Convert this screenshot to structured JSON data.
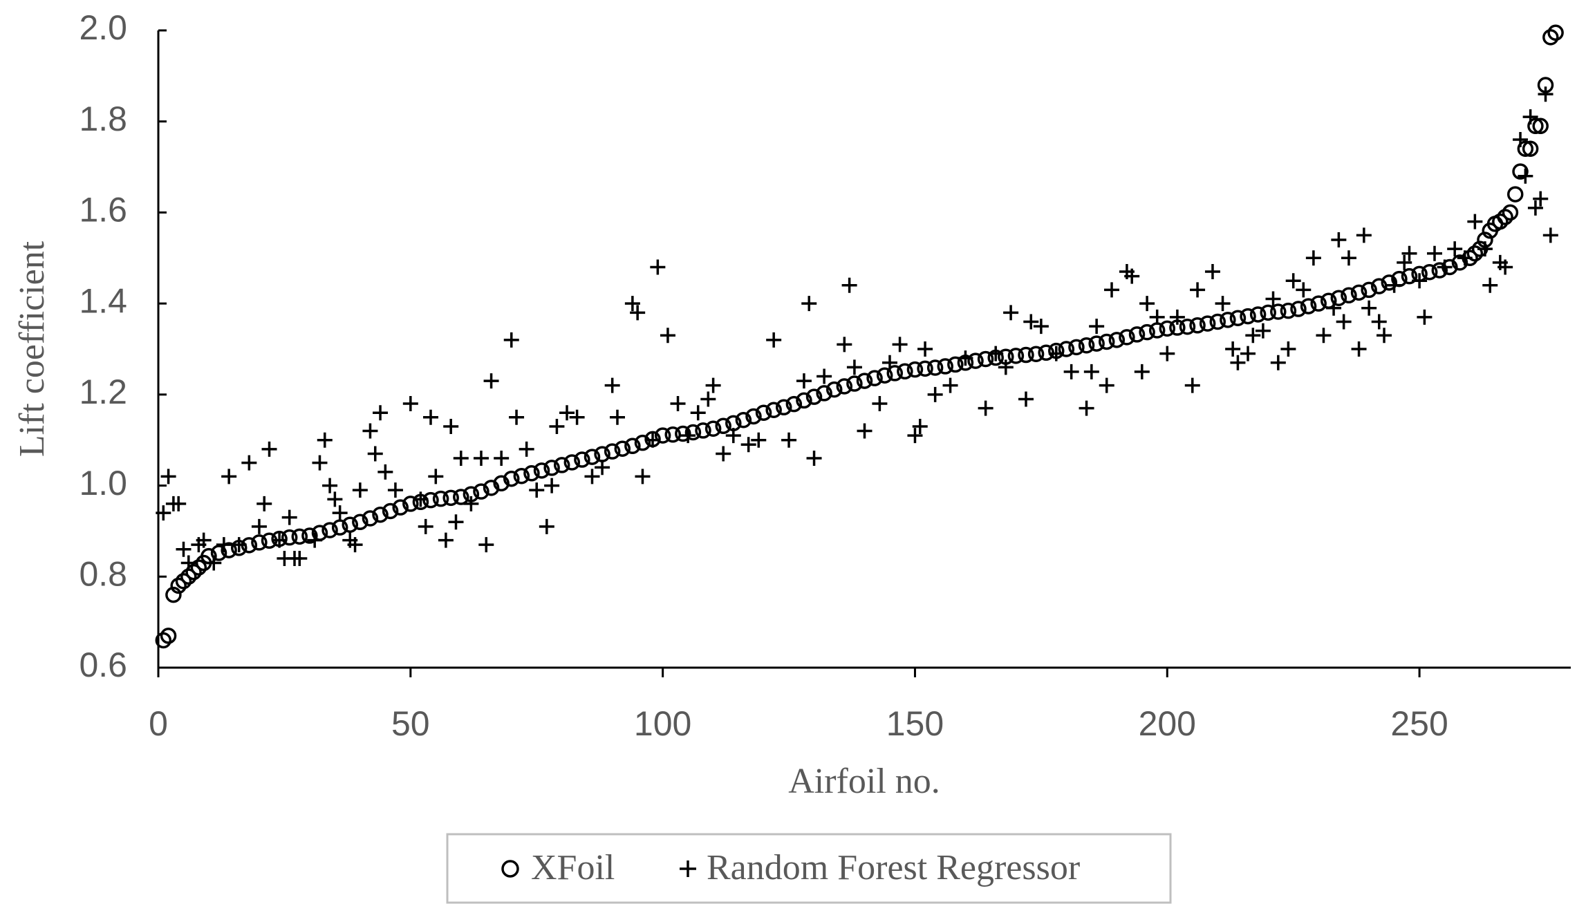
{
  "chart_data": {
    "type": "scatter",
    "x_label": "Airfoil no.",
    "y_label": "Lift coefficient",
    "xlim": [
      0,
      280
    ],
    "ylim": [
      0.6,
      2.0
    ],
    "xticks": [
      0,
      50,
      100,
      150,
      200,
      250
    ],
    "yticks": [
      {
        "value": 0.6,
        "label": "0.6"
      },
      {
        "value": 0.8,
        "label": "0.8"
      },
      {
        "value": 1.0,
        "label": "1.0"
      },
      {
        "value": 1.2,
        "label": "1.2"
      },
      {
        "value": 1.4,
        "label": "1.4"
      },
      {
        "value": 1.6,
        "label": "1.6"
      },
      {
        "value": 1.8,
        "label": "1.8"
      },
      {
        "value": 2.0,
        "label": "2.0"
      }
    ],
    "legend": "bottom",
    "series": [
      {
        "name": "XFoil",
        "color": "#000000",
        "marker": "circle",
        "x": [
          1,
          2,
          3,
          4,
          5,
          6,
          7,
          8,
          9,
          10,
          12,
          14,
          16,
          18,
          20,
          22,
          24,
          26,
          28,
          30,
          32,
          34,
          36,
          38,
          40,
          42,
          44,
          46,
          48,
          50,
          52,
          54,
          56,
          58,
          60,
          62,
          64,
          66,
          68,
          70,
          72,
          74,
          76,
          78,
          80,
          82,
          84,
          86,
          88,
          90,
          92,
          94,
          96,
          98,
          100,
          102,
          104,
          106,
          108,
          110,
          112,
          114,
          116,
          118,
          120,
          122,
          124,
          126,
          128,
          130,
          132,
          134,
          136,
          138,
          140,
          142,
          144,
          146,
          148,
          150,
          152,
          154,
          156,
          158,
          160,
          162,
          164,
          166,
          168,
          170,
          172,
          174,
          176,
          178,
          180,
          182,
          184,
          186,
          188,
          190,
          192,
          194,
          196,
          198,
          200,
          202,
          204,
          206,
          208,
          210,
          212,
          214,
          216,
          218,
          220,
          222,
          224,
          226,
          228,
          230,
          232,
          234,
          236,
          238,
          240,
          242,
          244,
          246,
          248,
          250,
          252,
          254,
          256,
          258,
          260,
          261,
          262,
          263,
          264,
          265,
          266,
          267,
          268,
          269,
          270,
          271,
          272,
          273,
          274,
          275,
          276,
          277
        ],
        "values": [
          0.66,
          0.67,
          0.76,
          0.78,
          0.79,
          0.8,
          0.81,
          0.82,
          0.83,
          0.845,
          0.852,
          0.858,
          0.863,
          0.869,
          0.875,
          0.879,
          0.883,
          0.886,
          0.888,
          0.89,
          0.896,
          0.902,
          0.908,
          0.914,
          0.92,
          0.928,
          0.936,
          0.944,
          0.952,
          0.96,
          0.964,
          0.968,
          0.971,
          0.973,
          0.975,
          0.981,
          0.987,
          0.995,
          1.005,
          1.015,
          1.021,
          1.027,
          1.033,
          1.039,
          1.045,
          1.051,
          1.057,
          1.063,
          1.069,
          1.075,
          1.081,
          1.087,
          1.094,
          1.102,
          1.11,
          1.112,
          1.114,
          1.117,
          1.121,
          1.125,
          1.131,
          1.137,
          1.144,
          1.152,
          1.16,
          1.166,
          1.172,
          1.179,
          1.187,
          1.195,
          1.203,
          1.211,
          1.218,
          1.224,
          1.23,
          1.236,
          1.242,
          1.247,
          1.251,
          1.255,
          1.257,
          1.259,
          1.262,
          1.266,
          1.27,
          1.274,
          1.278,
          1.281,
          1.283,
          1.285,
          1.287,
          1.289,
          1.292,
          1.296,
          1.3,
          1.304,
          1.308,
          1.312,
          1.316,
          1.32,
          1.326,
          1.332,
          1.337,
          1.341,
          1.345,
          1.347,
          1.349,
          1.352,
          1.356,
          1.36,
          1.364,
          1.368,
          1.372,
          1.376,
          1.38,
          1.382,
          1.384,
          1.388,
          1.394,
          1.4,
          1.406,
          1.412,
          1.418,
          1.424,
          1.43,
          1.438,
          1.446,
          1.454,
          1.46,
          1.465,
          1.469,
          1.473,
          1.48,
          1.49,
          1.5,
          1.51,
          1.52,
          1.54,
          1.56,
          1.575,
          1.58,
          1.59,
          1.6,
          1.64,
          1.69,
          1.74,
          1.74,
          1.79,
          1.79,
          1.88,
          1.985,
          1.995
        ]
      },
      {
        "name": "Random Forest Regressor",
        "color": "#000000",
        "marker": "plus",
        "x": [
          1,
          2,
          3,
          4,
          5,
          6,
          8,
          9,
          11,
          13,
          14,
          16,
          18,
          20,
          21,
          22,
          24,
          25,
          26,
          27,
          28,
          31,
          32,
          33,
          34,
          35,
          36,
          38,
          39,
          40,
          42,
          43,
          44,
          45,
          47,
          50,
          52,
          53,
          54,
          55,
          57,
          58,
          59,
          60,
          62,
          64,
          65,
          66,
          68,
          70,
          71,
          73,
          75,
          77,
          78,
          79,
          81,
          83,
          86,
          88,
          90,
          91,
          94,
          95,
          96,
          98,
          99,
          101,
          103,
          105,
          107,
          109,
          110,
          112,
          114,
          117,
          119,
          122,
          125,
          128,
          129,
          130,
          132,
          136,
          137,
          138,
          140,
          143,
          145,
          147,
          150,
          151,
          152,
          154,
          157,
          160,
          164,
          166,
          168,
          169,
          172,
          173,
          175,
          178,
          181,
          184,
          185,
          186,
          188,
          189,
          192,
          193,
          195,
          196,
          198,
          200,
          202,
          205,
          206,
          209,
          211,
          213,
          214,
          216,
          217,
          219,
          221,
          222,
          224,
          225,
          227,
          229,
          231,
          233,
          234,
          235,
          236,
          238,
          239,
          240,
          242,
          243,
          245,
          247,
          248,
          250,
          251,
          253,
          255,
          257,
          259,
          261,
          263,
          264,
          266,
          267,
          270,
          271,
          272,
          273,
          274,
          275,
          276
        ],
        "values": [
          0.94,
          1.02,
          0.96,
          0.96,
          0.86,
          0.83,
          0.87,
          0.88,
          0.83,
          0.87,
          1.02,
          0.87,
          1.05,
          0.91,
          0.96,
          1.08,
          0.88,
          0.84,
          0.93,
          0.84,
          0.84,
          0.88,
          1.05,
          1.1,
          1.0,
          0.97,
          0.94,
          0.88,
          0.87,
          0.99,
          1.12,
          1.07,
          1.16,
          1.03,
          0.99,
          1.18,
          0.97,
          0.91,
          1.15,
          1.02,
          0.88,
          1.13,
          0.92,
          1.06,
          0.96,
          1.06,
          0.87,
          1.23,
          1.06,
          1.32,
          1.15,
          1.08,
          0.99,
          0.91,
          1.0,
          1.13,
          1.16,
          1.15,
          1.02,
          1.04,
          1.22,
          1.15,
          1.4,
          1.38,
          1.02,
          1.1,
          1.48,
          1.33,
          1.18,
          1.11,
          1.16,
          1.19,
          1.22,
          1.07,
          1.11,
          1.09,
          1.1,
          1.32,
          1.1,
          1.23,
          1.4,
          1.06,
          1.24,
          1.31,
          1.44,
          1.26,
          1.12,
          1.18,
          1.27,
          1.31,
          1.11,
          1.13,
          1.3,
          1.2,
          1.22,
          1.28,
          1.17,
          1.29,
          1.26,
          1.38,
          1.19,
          1.36,
          1.35,
          1.29,
          1.25,
          1.17,
          1.25,
          1.35,
          1.22,
          1.43,
          1.47,
          1.46,
          1.25,
          1.4,
          1.37,
          1.29,
          1.37,
          1.22,
          1.43,
          1.47,
          1.4,
          1.3,
          1.27,
          1.29,
          1.33,
          1.34,
          1.41,
          1.27,
          1.3,
          1.45,
          1.43,
          1.5,
          1.33,
          1.39,
          1.54,
          1.36,
          1.5,
          1.3,
          1.55,
          1.39,
          1.36,
          1.33,
          1.44,
          1.49,
          1.51,
          1.45,
          1.37,
          1.51,
          1.48,
          1.52,
          1.5,
          1.58,
          1.52,
          1.44,
          1.49,
          1.48,
          1.76,
          1.68,
          1.81,
          1.61,
          1.63,
          1.86,
          1.55
        ]
      }
    ]
  }
}
